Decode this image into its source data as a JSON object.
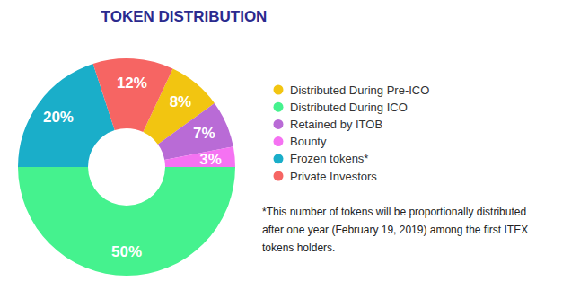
{
  "chart_data": {
    "type": "pie",
    "title": "TOKEN DISTRIBUTION",
    "categories": [
      "Distributed During Pre-ICO",
      "Distributed During ICO",
      "Retained by ITOB",
      "Bounty",
      "Frozen tokens*",
      "Private Investors"
    ],
    "values": [
      8,
      50,
      7,
      3,
      20,
      12
    ],
    "value_labels": [
      "8%",
      "50%",
      "7%",
      "3%",
      "20%",
      "12%"
    ],
    "colors": [
      "#f2c511",
      "#45f28e",
      "#b96bd6",
      "#f572f2",
      "#1aaec9",
      "#f66563"
    ],
    "data_labels": true,
    "legend": "right",
    "annotations": [
      "*This number of tokens will be proportionally distributed",
      "after one year (February 19, 2019) among the first ITEX",
      "tokens holders."
    ]
  }
}
